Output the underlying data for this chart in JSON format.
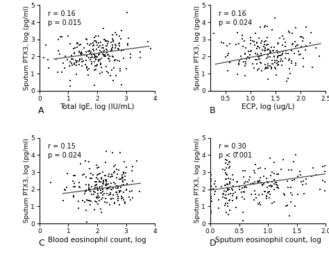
{
  "panels": [
    {
      "label": "A",
      "xlabel": "Total IgE, log (IU/mL)",
      "ylabel": "Sputum PTX3, log (pg/ml)",
      "r_text": "r = 0.16",
      "p_text": "p = 0.015",
      "xlim": [
        0,
        4
      ],
      "ylim": [
        0,
        5
      ],
      "xticks": [
        0,
        1,
        2,
        3,
        4
      ],
      "yticks": [
        0,
        1,
        2,
        3,
        4,
        5
      ],
      "x_mean": 2.0,
      "x_std": 0.7,
      "y_mean": 2.2,
      "y_std": 0.7,
      "rho": 0.16,
      "n_points": 220,
      "line_x": [
        0.5,
        3.8
      ],
      "line_y": [
        1.85,
        2.6
      ]
    },
    {
      "label": "B",
      "xlabel": "ECP, log (ug/L)",
      "ylabel": "Sputum PTX3, log (pg/ml)",
      "r_text": "r = 0.16",
      "p_text": "p = 0.024",
      "xlim": [
        0.2,
        2.5
      ],
      "ylim": [
        0,
        5
      ],
      "xticks": [
        0.5,
        1.0,
        1.5,
        2.0,
        2.5
      ],
      "yticks": [
        0,
        1,
        2,
        3,
        4,
        5
      ],
      "x_mean": 1.35,
      "x_std": 0.42,
      "y_mean": 2.2,
      "y_std": 0.75,
      "rho": 0.16,
      "n_points": 200,
      "line_x": [
        0.3,
        2.4
      ],
      "line_y": [
        1.55,
        2.75
      ]
    },
    {
      "label": "C",
      "xlabel": "Blood eosinophil count, log",
      "ylabel": "Sputum PTX3, log (pg/ml)",
      "r_text": "r = 0.15",
      "p_text": "p = 0.024",
      "xlim": [
        0,
        4
      ],
      "ylim": [
        0,
        5
      ],
      "xticks": [
        0,
        1,
        2,
        3,
        4
      ],
      "yticks": [
        0,
        1,
        2,
        3,
        4,
        5
      ],
      "x_mean": 2.2,
      "x_std": 0.55,
      "y_mean": 2.1,
      "y_std": 0.65,
      "rho": 0.15,
      "n_points": 220,
      "line_x": [
        0.8,
        3.5
      ],
      "line_y": [
        1.75,
        2.35
      ]
    },
    {
      "label": "D",
      "xlabel": "Sputum eosinophil count, log",
      "ylabel": "Sputum PTX3, log (pg/ml)",
      "r_text": "r = 0.30",
      "p_text": "p < 0.001",
      "xlim": [
        0.0,
        2.0
      ],
      "ylim": [
        0,
        5
      ],
      "xticks": [
        0.0,
        0.5,
        1.0,
        1.5,
        2.0
      ],
      "yticks": [
        0,
        1,
        2,
        3,
        4,
        5
      ],
      "x_mean": 0.85,
      "x_std": 0.55,
      "y_mean": 2.2,
      "y_std": 0.7,
      "rho": 0.3,
      "n_points": 180,
      "zero_stack": 35,
      "line_x": [
        0.0,
        2.0
      ],
      "line_y": [
        1.95,
        2.9
      ]
    }
  ],
  "dot_color": "#1a1a1a",
  "dot_size": 3.5,
  "line_color": "#444444",
  "bg_color": "#ffffff",
  "tick_font_size": 6.5,
  "xlabel_font_size": 7.5,
  "ylabel_font_size": 6.8,
  "annotation_font_size": 7.0,
  "panel_label_font_size": 9
}
